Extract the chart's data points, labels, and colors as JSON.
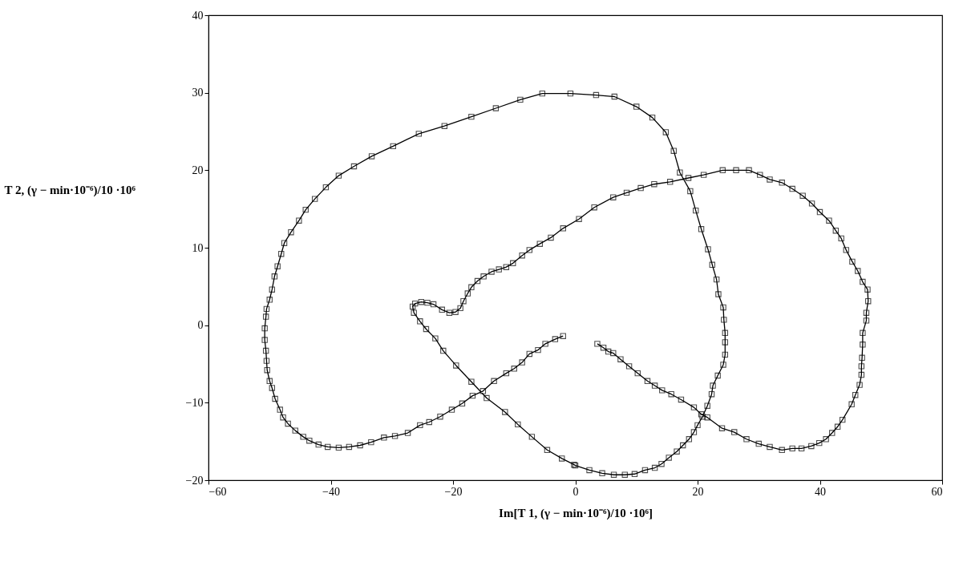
{
  "chart_data": {
    "type": "line",
    "xlabel": "Im[T 1, (γ − min·10⁻⁶)/10 ·10⁶]",
    "ylabel": "T 2, (γ − min·10⁻⁶)/10 ·10⁶",
    "xlim": [
      -60,
      60
    ],
    "xticks": [
      -60,
      -40,
      -20,
      0,
      20,
      40,
      60
    ],
    "ylim": [
      -20,
      40
    ],
    "yticks": [
      -20,
      -10,
      0,
      10,
      20,
      30,
      40
    ],
    "grid": false,
    "marker": "square",
    "line_style": "solid",
    "series": [
      {
        "color": "#000000",
        "x": [
          3.6,
          4.6,
          5.4,
          6.2,
          7.4,
          8.8,
          10.2,
          11.8,
          13,
          14.2,
          15.7,
          17.3,
          19.4,
          20.6,
          21.6,
          24,
          26,
          28,
          30,
          31.8,
          33.8,
          35.5,
          37,
          38.6,
          39.9,
          41,
          42,
          42.9,
          43.7,
          45.2,
          45.8,
          46.5,
          46.8,
          46.8,
          46.9,
          47,
          47,
          47.6,
          47.6,
          47.9,
          47.8,
          47,
          46.2,
          45.3,
          44.3,
          43.5,
          42.6,
          41.5,
          40,
          38.7,
          37.2,
          35.5,
          33.8,
          31.8,
          30.2,
          28.4,
          26.3,
          24.1,
          21,
          18.5,
          15.5,
          12.9,
          10.7,
          8.4,
          6.2,
          3.1,
          0.6,
          -2,
          -4,
          -5.8,
          -7.5,
          -8.7,
          -10.2,
          -11.3,
          -12.5,
          -13.7,
          -15,
          -16,
          -17,
          -17.6,
          -18.3,
          -18.8,
          -19.6,
          -20.6,
          -21.8,
          -23.2,
          -24.2,
          -25.2,
          -26.2,
          -26.6,
          -26.4,
          -25.4,
          -24.4,
          -22.9,
          -21.6,
          -19.5,
          -17,
          -14.5,
          -11.5,
          -9.4,
          -7.1,
          -4.6,
          -2.2,
          -0.2,
          0,
          2.3,
          4.4,
          6.3,
          8.1,
          9.7,
          11.4,
          13,
          14.1,
          15.3,
          16.6,
          17.6,
          18.6,
          19.4,
          20,
          20.8,
          21.6,
          22.3,
          22.5,
          23.3,
          24.2,
          24.5,
          24.5,
          24.5,
          24.3,
          24.2,
          23.4,
          23.1,
          22.4,
          21.7,
          20.6,
          19.7,
          18.8,
          17.1,
          16.1,
          14.8,
          12.6,
          10,
          6.4,
          3.4,
          -0.8,
          -5.4,
          -9,
          -13,
          -17,
          -21.4,
          -25.6,
          -29.8,
          -33.3,
          -36.2,
          -38.7,
          -40.8,
          -42.6,
          -44.1,
          -45.2,
          -46.5,
          -47.6,
          -48.1,
          -48.7,
          -49.2,
          -49.6,
          -50,
          -50.5,
          -50.6,
          -50.8,
          -50.8,
          -50.6,
          -50.5,
          -50.4,
          -50,
          -49.6,
          -49.1,
          -48.3,
          -47.8,
          -47,
          -45.8,
          -44.5,
          -43.5,
          -42,
          -40.5,
          -38.7,
          -37,
          -35.2,
          -33.4,
          -31.3,
          -29.5,
          -27.4,
          -25.4,
          -23.9,
          -22.1,
          -20.2,
          -18.5,
          -16.8,
          -15.1,
          -13.3,
          -11.3,
          -10,
          -8.7,
          -7.5,
          -6.1,
          -4.9,
          -3.3,
          -2
        ],
        "values": [
          -2.4,
          -2.9,
          -3.4,
          -3.6,
          -4.4,
          -5.3,
          -6.2,
          -7.2,
          -7.8,
          -8.4,
          -8.9,
          -9.6,
          -10.6,
          -11.5,
          -11.9,
          -13.3,
          -13.8,
          -14.7,
          -15.3,
          -15.7,
          -16.1,
          -15.9,
          -15.9,
          -15.6,
          -15.2,
          -14.7,
          -13.9,
          -13.1,
          -12.2,
          -10.2,
          -9,
          -7.7,
          -6.4,
          -5.3,
          -4.2,
          -2.5,
          -1,
          0.6,
          1.6,
          3.1,
          4.6,
          5.6,
          7,
          8.2,
          9.7,
          11.2,
          12.2,
          13.5,
          14.6,
          15.7,
          16.7,
          17.6,
          18.4,
          18.8,
          19.4,
          20,
          20,
          20,
          19.4,
          19,
          18.5,
          18.2,
          17.7,
          17.1,
          16.5,
          15.2,
          13.7,
          12.5,
          11.3,
          10.5,
          9.7,
          9,
          8,
          7.5,
          7.2,
          6.9,
          6.3,
          5.7,
          4.9,
          4.1,
          3.1,
          2.2,
          1.7,
          1.6,
          2,
          2.7,
          2.9,
          3,
          2.8,
          2.4,
          1.6,
          0.5,
          -0.5,
          -1.7,
          -3.3,
          -5.2,
          -7.3,
          -9.4,
          -11.2,
          -12.8,
          -14.4,
          -16.1,
          -17.2,
          -18,
          -18.1,
          -18.7,
          -19.1,
          -19.3,
          -19.3,
          -19.2,
          -18.7,
          -18.4,
          -17.9,
          -17.1,
          -16.3,
          -15.5,
          -14.7,
          -13.8,
          -12.9,
          -11.8,
          -10.4,
          -8.9,
          -7.8,
          -6.5,
          -5.1,
          -3.8,
          -2.2,
          -1,
          0.7,
          2.3,
          4,
          5.9,
          7.8,
          9.8,
          12.4,
          14.8,
          17.3,
          19.7,
          22.5,
          24.9,
          26.8,
          28.2,
          29.5,
          29.7,
          29.9,
          29.9,
          29.1,
          28,
          26.9,
          25.7,
          24.7,
          23.1,
          21.8,
          20.5,
          19.3,
          17.8,
          16.3,
          14.9,
          13.5,
          12,
          10.6,
          9.2,
          7.6,
          6.3,
          4.6,
          3.3,
          2.1,
          1.1,
          -0.4,
          -1.9,
          -3.3,
          -4.6,
          -5.8,
          -7.2,
          -8.1,
          -9.5,
          -10.9,
          -11.9,
          -12.7,
          -13.6,
          -14.4,
          -14.9,
          -15.4,
          -15.7,
          -15.8,
          -15.7,
          -15.5,
          -15.1,
          -14.5,
          -14.3,
          -13.9,
          -12.9,
          -12.5,
          -11.8,
          -10.9,
          -10.1,
          -9.1,
          -8.5,
          -7.2,
          -6.2,
          -5.6,
          -4.8,
          -3.7,
          -3.2,
          -2.4,
          -1.8,
          -1.4
        ]
      }
    ]
  }
}
